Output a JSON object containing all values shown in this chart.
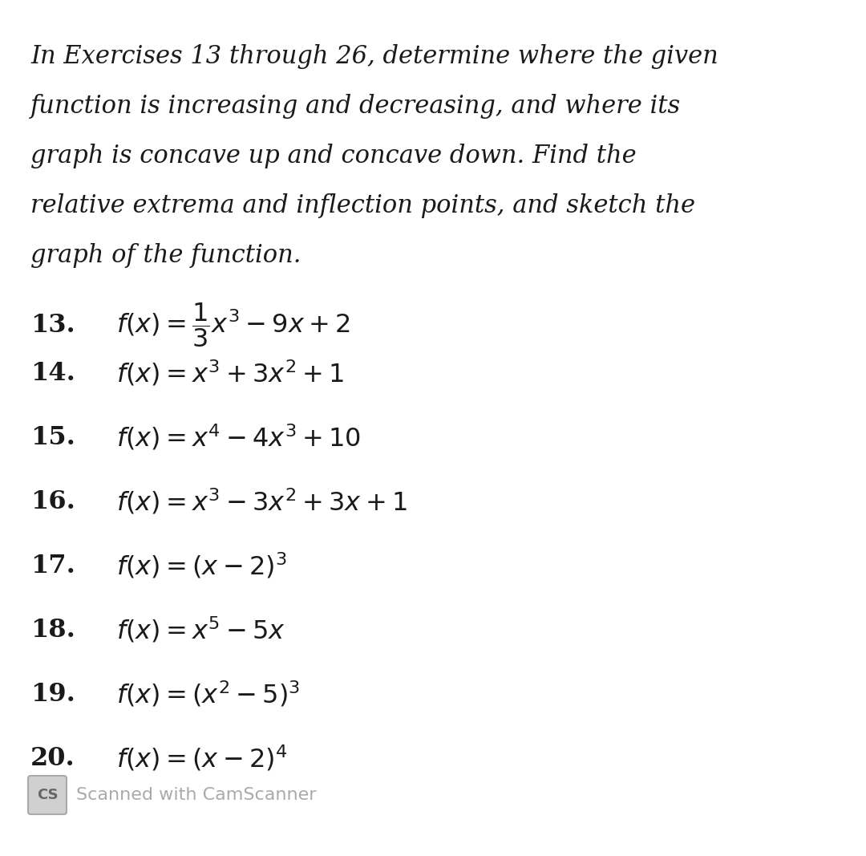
{
  "background_color": "#ffffff",
  "text_color": "#1a1a1a",
  "intro_lines": [
    "In Exercises 13 through 26, determine where the given",
    "function is increasing and decreasing, and where its",
    "graph is concave up and concave down. Find the",
    "relative extrema and inflection points, and sketch the",
    "graph of the function."
  ],
  "problem_nums": [
    "13.",
    "14.",
    "15.",
    "16.",
    "17.",
    "18.",
    "19.",
    "20."
  ],
  "problem_formulas": [
    "$f(x) = \\dfrac{1}{3}x^3 - 9x + 2$",
    "$f(x) = x^3 + 3x^2 + 1$",
    "$f(x) = x^4 - 4x^3 + 10$",
    "$f(x) = x^3 - 3x^2 + 3x + 1$",
    "$f(x) = (x - 2)^3$",
    "$f(x) = x^5 - 5x$",
    "$f(x) = (x^2 - 5)^3$",
    "$f(x) = (x - 2)^4$"
  ],
  "footer_cs_text": "CS",
  "footer_main_text": "Scanned with CamScanner",
  "fig_width": 10.8,
  "fig_height": 10.67,
  "dpi": 100
}
